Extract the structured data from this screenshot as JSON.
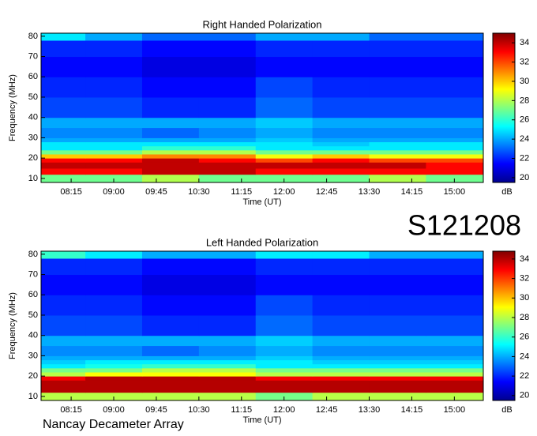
{
  "chart_data": [
    {
      "type": "heatmap",
      "title": "Right Handed Polarization",
      "xlabel": "Time (UT)",
      "ylabel": "Frequency (MHz)",
      "colorbar_label": "dB",
      "colormap": "jet",
      "xlim": [
        7.72,
        15.51
      ],
      "xticks": [
        {
          "value": 8.25,
          "label": "08:15"
        },
        {
          "value": 9,
          "label": "09:00"
        },
        {
          "value": 9.75,
          "label": "09:45"
        },
        {
          "value": 10.5,
          "label": "10:30"
        },
        {
          "value": 11.25,
          "label": "11:15"
        },
        {
          "value": 12,
          "label": "12:00"
        },
        {
          "value": 12.75,
          "label": "12:45"
        },
        {
          "value": 13.5,
          "label": "13:30"
        },
        {
          "value": 14.25,
          "label": "14:15"
        },
        {
          "value": 15,
          "label": "15:00"
        }
      ],
      "ylim": [
        8,
        81.5
      ],
      "yticks": [
        10,
        20,
        30,
        40,
        50,
        60,
        70,
        80
      ],
      "zlim": [
        19.5,
        35
      ],
      "zticks": [
        20,
        22,
        24,
        26,
        28,
        30,
        32,
        34
      ],
      "x_bins": [
        7.72,
        8.5,
        9.5,
        10.5,
        11.5,
        12.5,
        13.5,
        14.5,
        15.51
      ],
      "y_bins": [
        8,
        12,
        15,
        18,
        20,
        22,
        24,
        26,
        28,
        30,
        35,
        40,
        50,
        60,
        70,
        78,
        81.5
      ],
      "z": [
        [
          27,
          27,
          28,
          27,
          27,
          27,
          28,
          27
        ],
        [
          33,
          33,
          34,
          34,
          33,
          33,
          33,
          33
        ],
        [
          34,
          34,
          34,
          34,
          34,
          34,
          34,
          33
        ],
        [
          33,
          33,
          34,
          33,
          32,
          33,
          32,
          32
        ],
        [
          30,
          30,
          31,
          31,
          29,
          30,
          29,
          29
        ],
        [
          27,
          27,
          28,
          28,
          27,
          27,
          27,
          27
        ],
        [
          25,
          25,
          26,
          26,
          25,
          25,
          25,
          25
        ],
        [
          25,
          25,
          25,
          25,
          25,
          24.5,
          25,
          25
        ],
        [
          24,
          24,
          24,
          24,
          24.5,
          24,
          24,
          24
        ],
        [
          23.5,
          23.5,
          23,
          23.5,
          24,
          23.5,
          23.5,
          23.5
        ],
        [
          24,
          24,
          24,
          24,
          24.5,
          24,
          24,
          24
        ],
        [
          22.5,
          22.5,
          22,
          22,
          23,
          22.5,
          22.5,
          22.5
        ],
        [
          22,
          22,
          21.5,
          21.5,
          22.5,
          22,
          22,
          22
        ],
        [
          21.5,
          21.5,
          21,
          21,
          21.5,
          21.5,
          21.5,
          21.5
        ],
        [
          22,
          22,
          21.5,
          21.5,
          22,
          22,
          22,
          22
        ],
        [
          25,
          24,
          23,
          23,
          24,
          24,
          23,
          23
        ]
      ]
    },
    {
      "type": "heatmap",
      "title": "Left Handed Polarization",
      "xlabel": "Time (UT)",
      "ylabel": "Frequency (MHz)",
      "colorbar_label": "dB",
      "colormap": "jet",
      "xlim": [
        7.72,
        15.51
      ],
      "xticks": [
        {
          "value": 8.25,
          "label": "08:15"
        },
        {
          "value": 9,
          "label": "09:00"
        },
        {
          "value": 9.75,
          "label": "09:45"
        },
        {
          "value": 10.5,
          "label": "10:30"
        },
        {
          "value": 11.25,
          "label": "11:15"
        },
        {
          "value": 12,
          "label": "12:00"
        },
        {
          "value": 12.75,
          "label": "12:45"
        },
        {
          "value": 13.5,
          "label": "13:30"
        },
        {
          "value": 14.25,
          "label": "14:15"
        },
        {
          "value": 15,
          "label": "15:00"
        }
      ],
      "ylim": [
        8,
        81.5
      ],
      "yticks": [
        10,
        20,
        30,
        40,
        50,
        60,
        70,
        80
      ],
      "zlim": [
        19.5,
        34.8
      ],
      "zticks": [
        20,
        22,
        24,
        26,
        28,
        30,
        32,
        34
      ],
      "x_bins": [
        7.72,
        8.5,
        9.5,
        10.5,
        11.5,
        12.5,
        13.5,
        14.5,
        15.51
      ],
      "y_bins": [
        8,
        12,
        15,
        18,
        20,
        22,
        24,
        26,
        28,
        30,
        35,
        40,
        50,
        60,
        70,
        78,
        81.5
      ],
      "z": [
        [
          28,
          28,
          28,
          28,
          27,
          28,
          28,
          28
        ],
        [
          34,
          34,
          34,
          34,
          34,
          34,
          34,
          34
        ],
        [
          34,
          34,
          34,
          34,
          34,
          34,
          34,
          34
        ],
        [
          33,
          34,
          34,
          34,
          33,
          33,
          33,
          33
        ],
        [
          28,
          29,
          29,
          29,
          28,
          28,
          28,
          28
        ],
        [
          27,
          27,
          28,
          28,
          27,
          27,
          27,
          27
        ],
        [
          25,
          25.5,
          26,
          26,
          25,
          25,
          25,
          25
        ],
        [
          24.5,
          25,
          25,
          25,
          25,
          24.5,
          24.5,
          24.5
        ],
        [
          24,
          24,
          24,
          24,
          24.5,
          24,
          24,
          24
        ],
        [
          23.5,
          23.5,
          23,
          23.5,
          24,
          23.5,
          23.5,
          23.5
        ],
        [
          24,
          24,
          24,
          24,
          24.5,
          24,
          24,
          24
        ],
        [
          22.5,
          22.5,
          22,
          22,
          23,
          22.5,
          22.5,
          22.5
        ],
        [
          22,
          22,
          21.5,
          21.5,
          22.5,
          22,
          22,
          22
        ],
        [
          21.5,
          21.5,
          21,
          21,
          21.5,
          21.5,
          21.5,
          21.5
        ],
        [
          22,
          22,
          21.5,
          21.5,
          22,
          22,
          22,
          22
        ],
        [
          26,
          25,
          24,
          24,
          25,
          25,
          24,
          24
        ]
      ]
    }
  ],
  "station_id": "S121208",
  "footer": "Nancay Decameter Array"
}
